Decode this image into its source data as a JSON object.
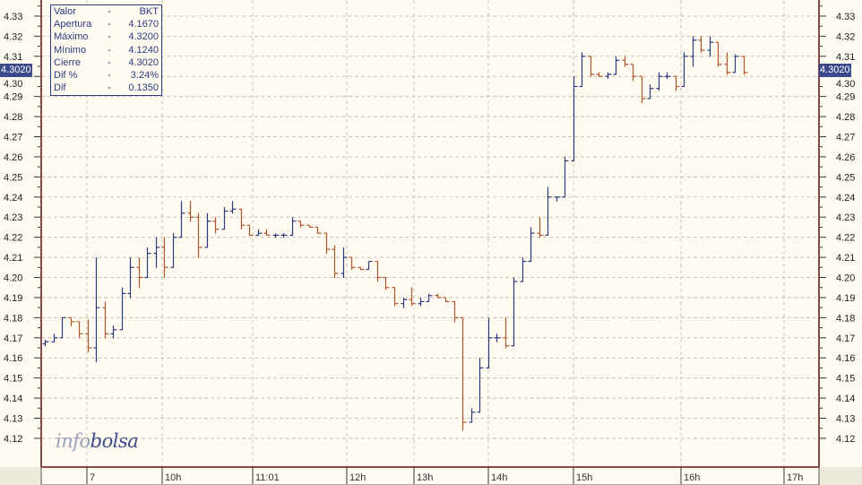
{
  "chart_data": {
    "type": "ohlc",
    "symbol": "BKT",
    "ylim": [
      4.1057,
      4.338
    ],
    "yticks": [
      4.12,
      4.13,
      4.14,
      4.15,
      4.16,
      4.17,
      4.18,
      4.19,
      4.2,
      4.21,
      4.22,
      4.23,
      4.24,
      4.25,
      4.26,
      4.27,
      4.28,
      4.29,
      4.3,
      4.31,
      4.32,
      4.33
    ],
    "xtick_labels": [
      "7",
      "10h",
      "11:01",
      "12h",
      "13h",
      "14h",
      "15h",
      "16h",
      "17h"
    ],
    "grid": true,
    "colors": {
      "up": "#2b3a80",
      "down": "#b5532a",
      "axis": "#8b4a4a",
      "grid": "#c8c4b8",
      "background": "#fffbf0"
    },
    "last_price": "4.3020",
    "bars": [
      [
        4.167,
        4.169,
        4.166,
        4.168
      ],
      [
        4.168,
        4.172,
        4.168,
        4.17
      ],
      [
        4.17,
        4.18,
        4.17,
        4.18
      ],
      [
        4.18,
        4.18,
        4.176,
        4.178
      ],
      [
        4.178,
        4.178,
        4.17,
        4.172
      ],
      [
        4.172,
        4.179,
        4.163,
        4.165
      ],
      [
        4.165,
        4.21,
        4.158,
        4.185
      ],
      [
        4.185,
        4.188,
        4.17,
        4.172
      ],
      [
        4.172,
        4.176,
        4.17,
        4.174
      ],
      [
        4.174,
        4.195,
        4.174,
        4.192
      ],
      [
        4.192,
        4.21,
        4.19,
        4.205
      ],
      [
        4.205,
        4.21,
        4.195,
        4.2
      ],
      [
        4.2,
        4.215,
        4.2,
        4.212
      ],
      [
        4.212,
        4.22,
        4.205,
        4.215
      ],
      [
        4.215,
        4.22,
        4.2,
        4.205
      ],
      [
        4.205,
        4.222,
        4.205,
        4.22
      ],
      [
        4.22,
        4.238,
        4.22,
        4.232
      ],
      [
        4.232,
        4.238,
        4.228,
        4.23
      ],
      [
        4.23,
        4.232,
        4.21,
        4.215
      ],
      [
        4.215,
        4.232,
        4.215,
        4.228
      ],
      [
        4.228,
        4.23,
        4.222,
        4.224
      ],
      [
        4.224,
        4.235,
        4.224,
        4.233
      ],
      [
        4.233,
        4.238,
        4.232,
        4.234
      ],
      [
        4.234,
        4.234,
        4.224,
        4.226
      ],
      [
        4.226,
        4.226,
        4.221,
        4.221
      ],
      [
        4.221,
        4.224,
        4.221,
        4.222
      ],
      [
        4.222,
        4.224,
        4.221,
        4.221
      ],
      [
        4.221,
        4.222,
        4.22,
        4.221
      ],
      [
        4.221,
        4.222,
        4.22,
        4.221
      ],
      [
        4.221,
        4.23,
        4.221,
        4.228
      ],
      [
        4.228,
        4.228,
        4.225,
        4.226
      ],
      [
        4.226,
        4.226,
        4.225,
        4.225
      ],
      [
        4.225,
        4.225,
        4.222,
        4.222
      ],
      [
        4.222,
        4.222,
        4.212,
        4.214
      ],
      [
        4.214,
        4.216,
        4.2,
        4.202
      ],
      [
        4.202,
        4.215,
        4.2,
        4.21
      ],
      [
        4.21,
        4.21,
        4.204,
        4.205
      ],
      [
        4.205,
        4.205,
        4.204,
        4.204
      ],
      [
        4.204,
        4.208,
        4.204,
        4.208
      ],
      [
        4.208,
        4.208,
        4.198,
        4.2
      ],
      [
        4.2,
        4.2,
        4.194,
        4.195
      ],
      [
        4.195,
        4.195,
        4.186,
        4.187
      ],
      [
        4.187,
        4.19,
        4.185,
        4.189
      ],
      [
        4.189,
        4.195,
        4.186,
        4.187
      ],
      [
        4.187,
        4.19,
        4.186,
        4.188
      ],
      [
        4.188,
        4.192,
        4.188,
        4.191
      ],
      [
        4.191,
        4.192,
        4.19,
        4.19
      ],
      [
        4.19,
        4.19,
        4.188,
        4.188
      ],
      [
        4.188,
        4.188,
        4.178,
        4.18
      ],
      [
        4.18,
        4.18,
        4.124,
        4.128
      ],
      [
        4.128,
        4.135,
        4.128,
        4.133
      ],
      [
        4.133,
        4.16,
        4.133,
        4.155
      ],
      [
        4.155,
        4.18,
        4.155,
        4.17
      ],
      [
        4.17,
        4.172,
        4.168,
        4.17
      ],
      [
        4.17,
        4.18,
        4.165,
        4.166
      ],
      [
        4.166,
        4.2,
        4.166,
        4.198
      ],
      [
        4.198,
        4.21,
        4.198,
        4.208
      ],
      [
        4.208,
        4.225,
        4.208,
        4.222
      ],
      [
        4.222,
        4.23,
        4.22,
        4.221
      ],
      [
        4.221,
        4.245,
        4.221,
        4.24
      ],
      [
        4.24,
        4.24,
        4.238,
        4.24
      ],
      [
        4.24,
        4.26,
        4.24,
        4.258
      ],
      [
        4.258,
        4.3,
        4.258,
        4.295
      ],
      [
        4.295,
        4.312,
        4.295,
        4.31
      ],
      [
        4.31,
        4.31,
        4.3,
        4.301
      ],
      [
        4.301,
        4.302,
        4.3,
        4.3
      ],
      [
        4.3,
        4.302,
        4.299,
        4.301
      ],
      [
        4.301,
        4.31,
        4.301,
        4.308
      ],
      [
        4.308,
        4.31,
        4.305,
        4.306
      ],
      [
        4.306,
        4.306,
        4.298,
        4.3
      ],
      [
        4.3,
        4.3,
        4.287,
        4.289
      ],
      [
        4.289,
        4.296,
        4.289,
        4.294
      ],
      [
        4.294,
        4.302,
        4.293,
        4.3
      ],
      [
        4.3,
        4.302,
        4.299,
        4.3
      ],
      [
        4.3,
        4.3,
        4.293,
        4.295
      ],
      [
        4.295,
        4.312,
        4.295,
        4.31
      ],
      [
        4.31,
        4.32,
        4.305,
        4.318
      ],
      [
        4.318,
        4.32,
        4.312,
        4.313
      ],
      [
        4.313,
        4.32,
        4.31,
        4.317
      ],
      [
        4.317,
        4.317,
        4.305,
        4.306
      ],
      [
        4.306,
        4.312,
        4.301,
        4.302
      ],
      [
        4.302,
        4.311,
        4.302,
        4.31
      ],
      [
        4.31,
        4.31,
        4.301,
        4.302
      ]
    ]
  },
  "legend": {
    "rows": [
      {
        "k": "Valor",
        "d": "-",
        "v": "BKT"
      },
      {
        "k": "Apertura",
        "d": "-",
        "v": "4.1670"
      },
      {
        "k": "Máximo",
        "d": "-",
        "v": "4.3200"
      },
      {
        "k": "Mínimo",
        "d": "-",
        "v": "4.1240"
      },
      {
        "k": "Cierre",
        "d": "-",
        "v": "4.3020"
      },
      {
        "k": "Dif %",
        "d": "-",
        "v": "3.24%"
      },
      {
        "k": "Dif",
        "d": "-",
        "v": "0.1350"
      }
    ]
  },
  "watermark": {
    "part1": "info",
    "part2": "bolsa"
  }
}
